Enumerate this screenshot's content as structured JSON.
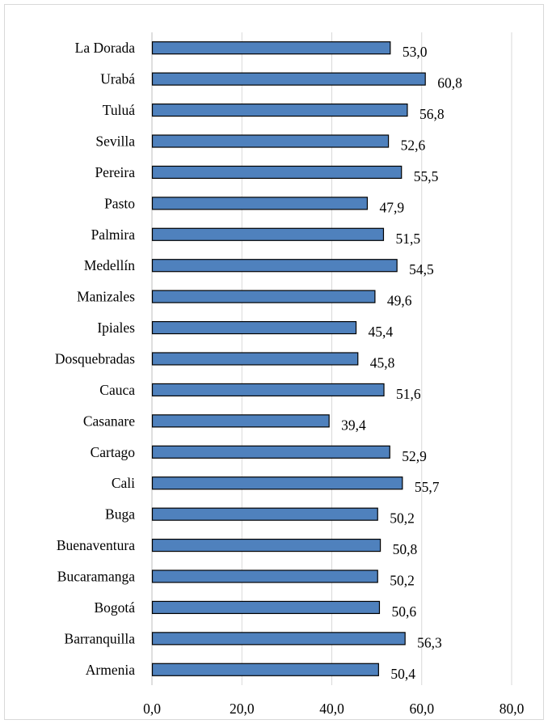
{
  "chart_data": {
    "type": "bar",
    "orientation": "horizontal",
    "title": "",
    "xlabel": "",
    "ylabel": "",
    "categories": [
      "La Dorada",
      "Urabá",
      "Tuluá",
      "Sevilla",
      "Pereira",
      "Pasto",
      "Palmira",
      "Medellín",
      "Manizales",
      "Ipiales",
      "Dosquebradas",
      "Cauca",
      "Casanare",
      "Cartago",
      "Cali",
      "Buga",
      "Buenaventura",
      "Bucaramanga",
      "Bogotá",
      "Barranquilla",
      "Armenia"
    ],
    "values": [
      53.0,
      60.8,
      56.8,
      52.6,
      55.5,
      47.9,
      51.5,
      54.5,
      49.6,
      45.4,
      45.8,
      51.6,
      39.4,
      52.9,
      55.7,
      50.2,
      50.8,
      50.2,
      50.6,
      56.3,
      50.4
    ],
    "value_labels": [
      "53,0",
      "60,8",
      "56,8",
      "52,6",
      "55,5",
      "47,9",
      "51,5",
      "54,5",
      "49,6",
      "45,4",
      "45,8",
      "51,6",
      "39,4",
      "52,9",
      "55,7",
      "50,2",
      "50,8",
      "50,2",
      "50,6",
      "56,3",
      "50,4"
    ],
    "xlim": [
      0,
      80
    ],
    "x_ticks": [
      0,
      20,
      40,
      60,
      80
    ],
    "x_tick_labels": [
      "0,0",
      "20,0",
      "40,0",
      "60,0",
      "80,0"
    ],
    "grid": "vertical",
    "bar_color": "#4f81bd",
    "bar_edge_color": "#000000",
    "grid_color": "#d9d9d9"
  }
}
